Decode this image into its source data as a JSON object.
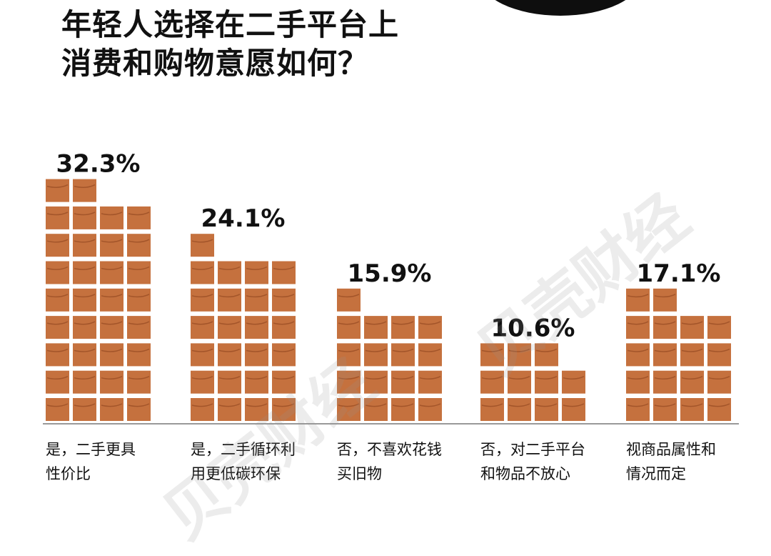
{
  "title": {
    "line1": "年轻人选择在二手平台上",
    "line2": "消费和购物意愿如何？"
  },
  "chart_data": {
    "type": "bar",
    "categories": [
      [
        "是，二手更具",
        "性价比"
      ],
      [
        "是，二手循环利",
        "用更低碳环保"
      ],
      [
        "否，不喜欢花钱",
        "买旧物"
      ],
      [
        "否，对二手平台",
        "和物品不放心"
      ],
      [
        "视商品属性和",
        "情况而定"
      ]
    ],
    "values": [
      32.3,
      24.1,
      15.9,
      10.6,
      17.1
    ],
    "value_labels": [
      "32.3%",
      "24.1%",
      "15.9%",
      "10.6%",
      "17.1%"
    ],
    "unit": "%",
    "bar_color": "#c5713e"
  },
  "watermark": "贝壳财经"
}
